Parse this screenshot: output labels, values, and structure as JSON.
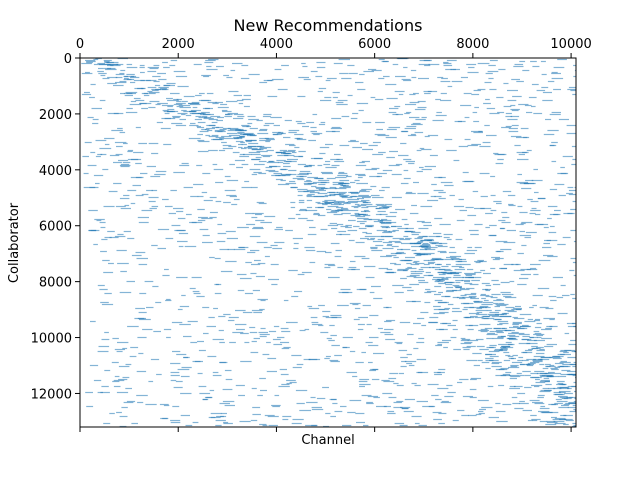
{
  "chart_data": {
    "type": "heatmap",
    "title": "New Recommendations",
    "xlabel": "Channel",
    "ylabel": "Collaborator",
    "xlim": [
      0,
      10100
    ],
    "ylim": [
      13200,
      0
    ],
    "x_axis_position": "top",
    "x_ticks": [
      0,
      2000,
      4000,
      6000,
      8000,
      10000
    ],
    "x_tick_labels": [
      "0",
      "2000",
      "4000",
      "6000",
      "8000",
      "10000"
    ],
    "y_ticks": [
      0,
      2000,
      4000,
      6000,
      8000,
      10000,
      12000
    ],
    "y_tick_labels": [
      "0",
      "2000",
      "4000",
      "6000",
      "8000",
      "10000",
      "12000"
    ],
    "grid": false,
    "marker": "horizontal-dash",
    "color": "#1f77b4",
    "alpha": 0.55,
    "pattern": {
      "description": "sparse matrix; each collaborator row has short horizontal marks at recommended channels, density concentrated along a diagonal band",
      "diagonal_band": [
        [
          0,
          0
        ],
        [
          2800,
          2300
        ],
        [
          5200,
          5000
        ],
        [
          6600,
          6600
        ],
        [
          8600,
          9500
        ],
        [
          10100,
          12700
        ]
      ],
      "approx_marks": 2600
    }
  }
}
